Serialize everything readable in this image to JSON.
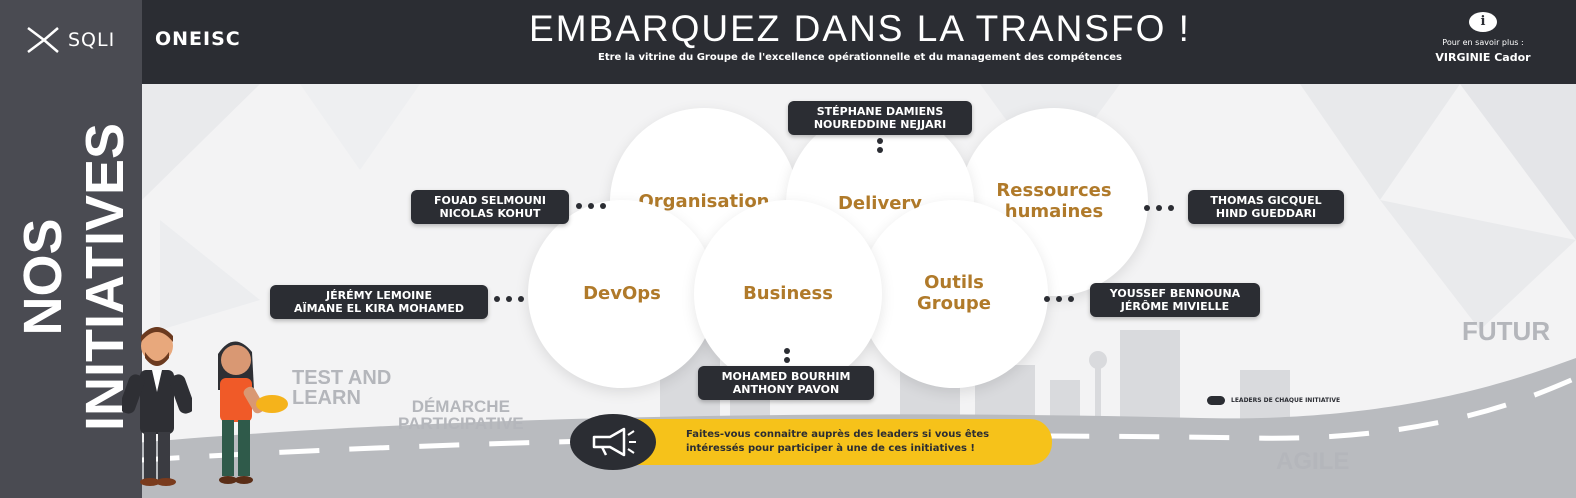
{
  "header": {
    "logo_text": "SQLI",
    "brand": "ONEISC",
    "title": "EMBARQUEZ DANS LA TRANSFO !",
    "subtitle": "Etre la vitrine du Groupe de l'excellence opérationnelle et du management des compétences",
    "info_icon": "i",
    "info_label": "Pour en savoir plus :",
    "info_contact": "VIRGINIE Cador"
  },
  "sidebar": {
    "title": "NOS INITIATIVES"
  },
  "initiatives": [
    {
      "name": "Organisation",
      "leaders": [
        "FOUAD SELMOUNI",
        "NICOLAS KOHUT"
      ]
    },
    {
      "name": "Delivery",
      "leaders": [
        "STÉPHANE DAMIENS",
        "NOUREDDINE NEJJARI"
      ]
    },
    {
      "name": "Ressources humaines",
      "line1": "Ressources",
      "line2": "humaines",
      "leaders": [
        "THOMAS GICQUEL",
        "HIND GUEDDARI"
      ]
    },
    {
      "name": "DevOps",
      "leaders": [
        "JÉRÉMY LEMOINE",
        "AÏMANE EL KIRA MOHAMED"
      ]
    },
    {
      "name": "Business",
      "leaders": [
        "MOHAMED BOURHIM",
        "ANTHONY PAVON"
      ]
    },
    {
      "name": "Outils Groupe",
      "line1": "Outils",
      "line2": "Groupe",
      "leaders": [
        "YOUSSEF BENNOUNA",
        "JÉRÔME MIVIELLE"
      ]
    }
  ],
  "background_words": {
    "test_and_learn": [
      "TEST AND",
      "LEARN"
    ],
    "demarche": [
      "DÉMARCHE",
      "PARTICIPATIVE"
    ],
    "futur": "FUTUR",
    "agile": "AGILE"
  },
  "legend": {
    "label": "LEADERS DE CHAQUE INITIATIVE"
  },
  "cta": {
    "line1": "Faites-vous connaitre auprès des leaders si vous êtes",
    "line2": "intéressés pour participer à une de ces initiatives !",
    "icon": "megaphone-icon"
  },
  "colors": {
    "header_bg": "#2b2d33",
    "sidebar_bg": "#4a4b52",
    "accent_gold": "#b07a2a",
    "cta_yellow": "#f6c21a"
  }
}
